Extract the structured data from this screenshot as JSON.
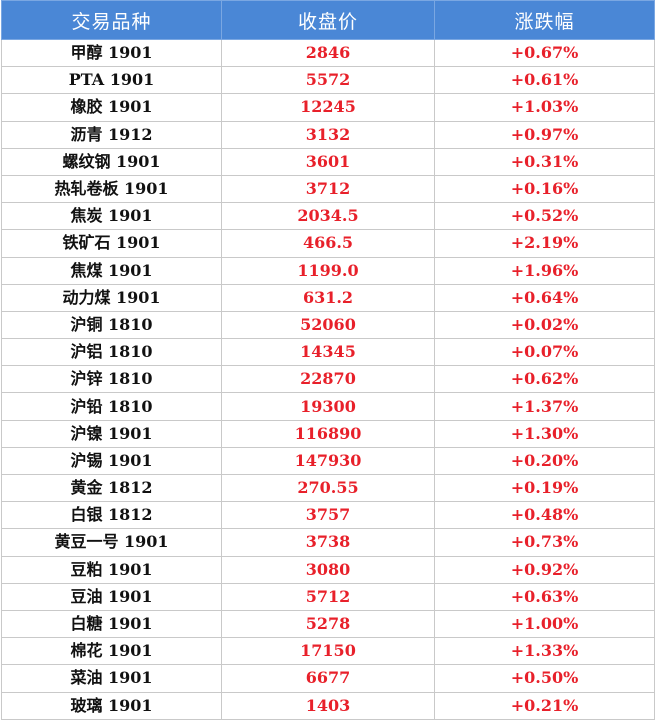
{
  "table": {
    "headers": [
      "交易品种",
      "收盘价",
      "涨跌幅"
    ],
    "rows": [
      {
        "name": "甲醇 1901",
        "close": "2846",
        "change": "+0.67%"
      },
      {
        "name": "PTA 1901",
        "close": "5572",
        "change": "+0.61%"
      },
      {
        "name": "橡胶 1901",
        "close": "12245",
        "change": "+1.03%"
      },
      {
        "name": "沥青 1912",
        "close": "3132",
        "change": "+0.97%"
      },
      {
        "name": "螺纹钢 1901",
        "close": "3601",
        "change": "+0.31%"
      },
      {
        "name": "热轧卷板 1901",
        "close": "3712",
        "change": "+0.16%"
      },
      {
        "name": "焦炭 1901",
        "close": "2034.5",
        "change": "+0.52%"
      },
      {
        "name": "铁矿石 1901",
        "close": "466.5",
        "change": "+2.19%"
      },
      {
        "name": "焦煤 1901",
        "close": "1199.0",
        "change": "+1.96%"
      },
      {
        "name": "动力煤 1901",
        "close": "631.2",
        "change": "+0.64%"
      },
      {
        "name": "沪铜 1810",
        "close": "52060",
        "change": "+0.02%"
      },
      {
        "name": "沪铝 1810",
        "close": "14345",
        "change": "+0.07%"
      },
      {
        "name": "沪锌 1810",
        "close": "22870",
        "change": "+0.62%"
      },
      {
        "name": "沪铅 1810",
        "close": "19300",
        "change": "+1.37%"
      },
      {
        "name": "沪镍 1901",
        "close": "116890",
        "change": "+1.30%"
      },
      {
        "name": "沪锡 1901",
        "close": "147930",
        "change": "+0.20%"
      },
      {
        "name": "黄金 1812",
        "close": "270.55",
        "change": "+0.19%"
      },
      {
        "name": "白银 1812",
        "close": "3757",
        "change": "+0.48%"
      },
      {
        "name": "黄豆一号 1901",
        "close": "3738",
        "change": "+0.73%"
      },
      {
        "name": "豆粕 1901",
        "close": "3080",
        "change": "+0.92%"
      },
      {
        "name": "豆油 1901",
        "close": "5712",
        "change": "+0.63%"
      },
      {
        "name": "白糖 1901",
        "close": "5278",
        "change": "+1.00%"
      },
      {
        "name": "棉花 1901",
        "close": "17150",
        "change": "+1.33%"
      },
      {
        "name": "菜油 1901",
        "close": "6677",
        "change": "+0.50%"
      },
      {
        "name": "玻璃 1901",
        "close": "1403",
        "change": "+0.21%"
      }
    ]
  },
  "colors": {
    "header_bg": "#4a87d6",
    "header_text": "#ffffff",
    "up": "#e8202a",
    "name_text": "#111111"
  }
}
